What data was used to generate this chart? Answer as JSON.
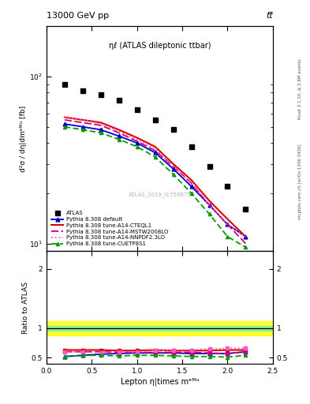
{
  "title_top": "13000 GeV pp",
  "title_top_right": "tt̅",
  "annotation": "ηℓ (ATLAS dileptonic ttbar)",
  "watermark": "ATLAS_2019_I1759875",
  "rivet_label": "Rivet 3.1.10, ≥ 2.8M events",
  "mcplots_label": "mcplots.cern.ch [arXiv:1306.3436]",
  "ylabel_main": "d²σ / dη|dmᵉᴹᵘ [fb]",
  "ylabel_ratio": "Ratio to ATLAS",
  "xlabel": "Lepton η|times mᵉᴹᵘ",
  "atlas_x": [
    0.2,
    0.4,
    0.6,
    0.8,
    1.0,
    1.2,
    1.4,
    1.6,
    1.8,
    2.0,
    2.2
  ],
  "atlas_y": [
    90,
    82,
    78,
    72,
    63,
    55,
    48,
    38,
    29,
    22,
    16
  ],
  "py_default_y": [
    52,
    50,
    48,
    44,
    40,
    35,
    28,
    22,
    17,
    13,
    11
  ],
  "py_cteql1_y": [
    57,
    55,
    53,
    48,
    43,
    38,
    30,
    24,
    18,
    14,
    11
  ],
  "py_mstw_y": [
    55,
    53,
    51,
    46,
    41,
    36,
    29,
    23,
    17,
    13,
    10
  ],
  "py_nnpdf_y": [
    57,
    55,
    52,
    47,
    42,
    37,
    29,
    23,
    17,
    13,
    11
  ],
  "py_cuetp8s1_y": [
    50,
    48,
    46,
    42,
    38,
    33,
    26,
    20,
    15,
    11,
    9.5
  ],
  "ratio_default": [
    0.52,
    0.54,
    0.56,
    0.57,
    0.58,
    0.58,
    0.58,
    0.57,
    0.57,
    0.57,
    0.6
  ],
  "ratio_cteql1": [
    0.63,
    0.63,
    0.63,
    0.62,
    0.62,
    0.63,
    0.62,
    0.62,
    0.62,
    0.63,
    0.63
  ],
  "ratio_mstw": [
    0.6,
    0.6,
    0.6,
    0.59,
    0.59,
    0.59,
    0.59,
    0.59,
    0.58,
    0.57,
    0.6
  ],
  "ratio_nnpdf": [
    0.6,
    0.6,
    0.59,
    0.6,
    0.6,
    0.62,
    0.63,
    0.63,
    0.65,
    0.66,
    0.66
  ],
  "ratio_cuetp8s1": [
    0.52,
    0.54,
    0.54,
    0.53,
    0.54,
    0.54,
    0.53,
    0.52,
    0.52,
    0.51,
    0.54
  ],
  "color_default": "#0000cc",
  "color_cteql1": "#dd0000",
  "color_mstw": "#cc0077",
  "color_nnpdf": "#ff55cc",
  "color_cuetp8s1": "#009900",
  "band_green_lo": 0.96,
  "band_green_hi": 1.04,
  "band_yellow_lo": 0.88,
  "band_yellow_hi": 1.12,
  "ylim_main": [
    9,
    200
  ],
  "ylim_ratio": [
    0.4,
    2.3
  ],
  "xlim": [
    0.0,
    2.5
  ],
  "ratio_yticks": [
    0.5,
    1.0,
    2.0
  ],
  "ratio_yticklabels": [
    "0.5",
    "1",
    "2"
  ],
  "bg_color": "#ffffff"
}
